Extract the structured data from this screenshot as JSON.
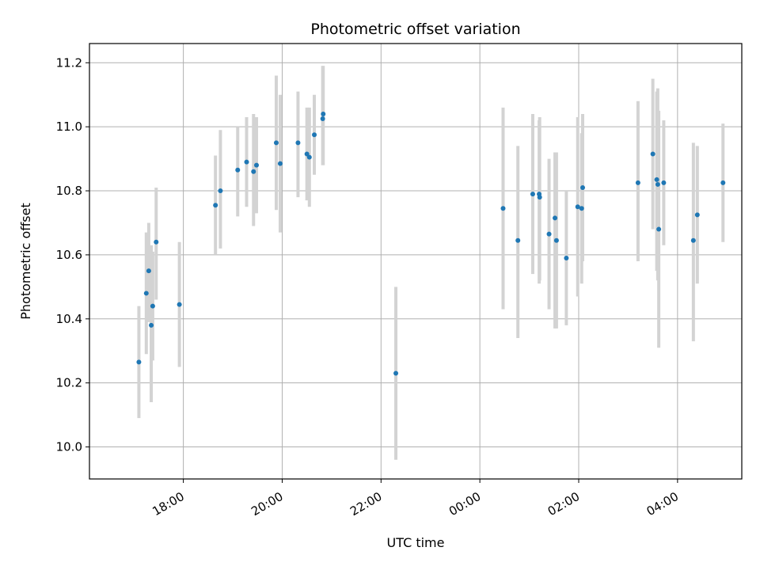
{
  "chart_data": {
    "type": "scatter",
    "title": "Photometric offset variation",
    "xlabel": "UTC time",
    "ylabel": "Photometric offset",
    "grid": true,
    "ylim": [
      9.9,
      11.26
    ],
    "xlim_hours_since_1600": [
      0.1,
      13.3
    ],
    "yticks": [
      10.0,
      10.2,
      10.4,
      10.6,
      10.8,
      11.0,
      11.2
    ],
    "ytick_labels": [
      "10.0",
      "10.2",
      "10.4",
      "10.6",
      "10.8",
      "11.0",
      "11.2"
    ],
    "xticks_hours_since_1600": [
      2,
      4,
      6,
      8,
      10,
      12
    ],
    "xtick_labels": [
      "18:00",
      "20:00",
      "22:00",
      "00:00",
      "02:00",
      "04:00"
    ],
    "colors": {
      "point": "#1f77b4",
      "errorbar": "#d3d3d3",
      "grid": "#b0b0b0"
    },
    "series": [
      {
        "name": "offset",
        "x_hours_since_1600": [
          1.1,
          1.25,
          1.3,
          1.35,
          1.38,
          1.45,
          1.92,
          2.65,
          2.75,
          3.1,
          3.28,
          3.42,
          3.48,
          3.88,
          3.96,
          4.32,
          4.5,
          4.55,
          4.65,
          4.82,
          4.83,
          6.3,
          8.47,
          8.77,
          9.07,
          9.2,
          9.21,
          9.4,
          9.52,
          9.55,
          9.75,
          9.98,
          10.06,
          10.08,
          11.2,
          11.5,
          11.58,
          11.6,
          11.62,
          11.72,
          12.32,
          12.4,
          12.92
        ],
        "y": [
          10.265,
          10.48,
          10.55,
          10.38,
          10.44,
          10.64,
          10.445,
          10.755,
          10.8,
          10.865,
          10.89,
          10.86,
          10.88,
          10.95,
          10.885,
          10.95,
          10.915,
          10.905,
          10.975,
          11.025,
          11.04,
          10.23,
          10.745,
          10.645,
          10.79,
          10.79,
          10.78,
          10.665,
          10.715,
          10.645,
          10.59,
          10.75,
          10.745,
          10.81,
          10.825,
          10.915,
          10.835,
          10.82,
          10.68,
          10.825,
          10.645,
          10.725,
          10.825
        ],
        "err_low": [
          10.09,
          10.29,
          10.39,
          10.14,
          10.27,
          10.46,
          10.25,
          10.6,
          10.62,
          10.72,
          10.75,
          10.69,
          10.73,
          10.74,
          10.67,
          10.78,
          10.77,
          10.75,
          10.85,
          10.88,
          10.88,
          9.96,
          10.43,
          10.34,
          10.54,
          10.51,
          10.52,
          10.43,
          10.37,
          10.37,
          10.38,
          10.47,
          10.51,
          10.58,
          10.58,
          10.68,
          10.55,
          10.52,
          10.31,
          10.63,
          10.33,
          10.51,
          10.64
        ],
        "err_high": [
          10.44,
          10.67,
          10.7,
          10.63,
          10.61,
          10.81,
          10.64,
          10.91,
          10.99,
          11.0,
          11.03,
          11.04,
          11.03,
          11.16,
          11.1,
          11.11,
          11.06,
          11.06,
          11.1,
          11.19,
          11.19,
          10.5,
          11.06,
          10.94,
          11.04,
          11.02,
          11.03,
          10.9,
          10.92,
          10.92,
          10.8,
          11.03,
          10.98,
          11.04,
          11.08,
          11.15,
          11.11,
          11.12,
          11.05,
          11.02,
          10.95,
          10.94,
          11.01
        ]
      }
    ]
  }
}
